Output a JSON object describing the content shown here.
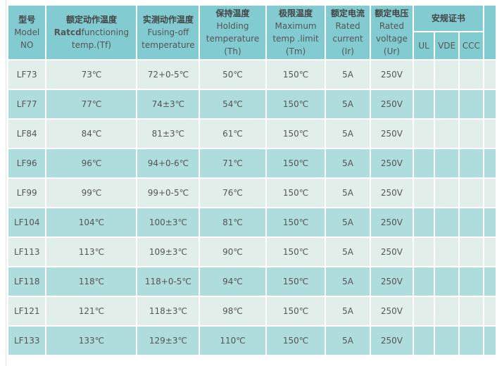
{
  "header": {
    "model": {
      "zh": "型号",
      "en1": "Model",
      "en2": "NO"
    },
    "rated_temp": {
      "zh": "额定动作温度",
      "en_bold": "Ratcd",
      "en1": "functioning",
      "en2": "temp.(Tf)"
    },
    "fusing_temp": {
      "zh": "实测动作温度",
      "en1": "Fusing-off",
      "en2": "temperature"
    },
    "holding_temp": {
      "zh": "保持温度",
      "en1": "Holding",
      "en2": "temperature",
      "en3": "(Th)"
    },
    "max_temp": {
      "zh": "极限温度",
      "en1": "Maximum",
      "en2": "temp .limit",
      "en3": "(Tm)"
    },
    "rated_current": {
      "zh": "额定电流",
      "en1": "Rated",
      "en2": "current",
      "en3": "(Ir)"
    },
    "rated_voltage": {
      "zh": "额定电压",
      "en1": "Rated",
      "en2": "voltage",
      "en3": "(Ur)"
    },
    "cert": {
      "zh": "安规证书",
      "sub": [
        "UL",
        "VDE",
        "CCC"
      ]
    }
  },
  "rows": [
    [
      "LF73",
      "73℃",
      "72+0-5℃",
      "50℃",
      "150℃",
      "5A",
      "250V"
    ],
    [
      "LF77",
      "77℃",
      "74±3℃",
      "54℃",
      "150℃",
      "5A",
      "250V"
    ],
    [
      "LF84",
      "84℃",
      "81±3℃",
      "61℃",
      "150℃",
      "5A",
      "250V"
    ],
    [
      "LF96",
      "96℃",
      "94+0-6℃",
      "71℃",
      "150℃",
      "5A",
      "250V"
    ],
    [
      "LF99",
      "99℃",
      "99+0-5℃",
      "76℃",
      "150℃",
      "5A",
      "250V"
    ],
    [
      "LF104",
      "104℃",
      "100±3℃",
      "81℃",
      "150℃",
      "5A",
      "250V"
    ],
    [
      "LF113",
      "113℃",
      "109±3℃",
      "90℃",
      "150℃",
      "5A",
      "250V"
    ],
    [
      "LF118",
      "118℃",
      "118+0-5℃",
      "94℃",
      "150℃",
      "5A",
      "250V"
    ],
    [
      "LF121",
      "121℃",
      "118±3℃",
      "98℃",
      "150℃",
      "5A",
      "250V"
    ],
    [
      "LF133",
      "133℃",
      "129±3℃",
      "110℃",
      "150℃",
      "5A",
      "250V"
    ]
  ],
  "colors": {
    "header": "#82cbd0",
    "row_light": "#e2eeea",
    "row_dark": "#afdcdc"
  }
}
